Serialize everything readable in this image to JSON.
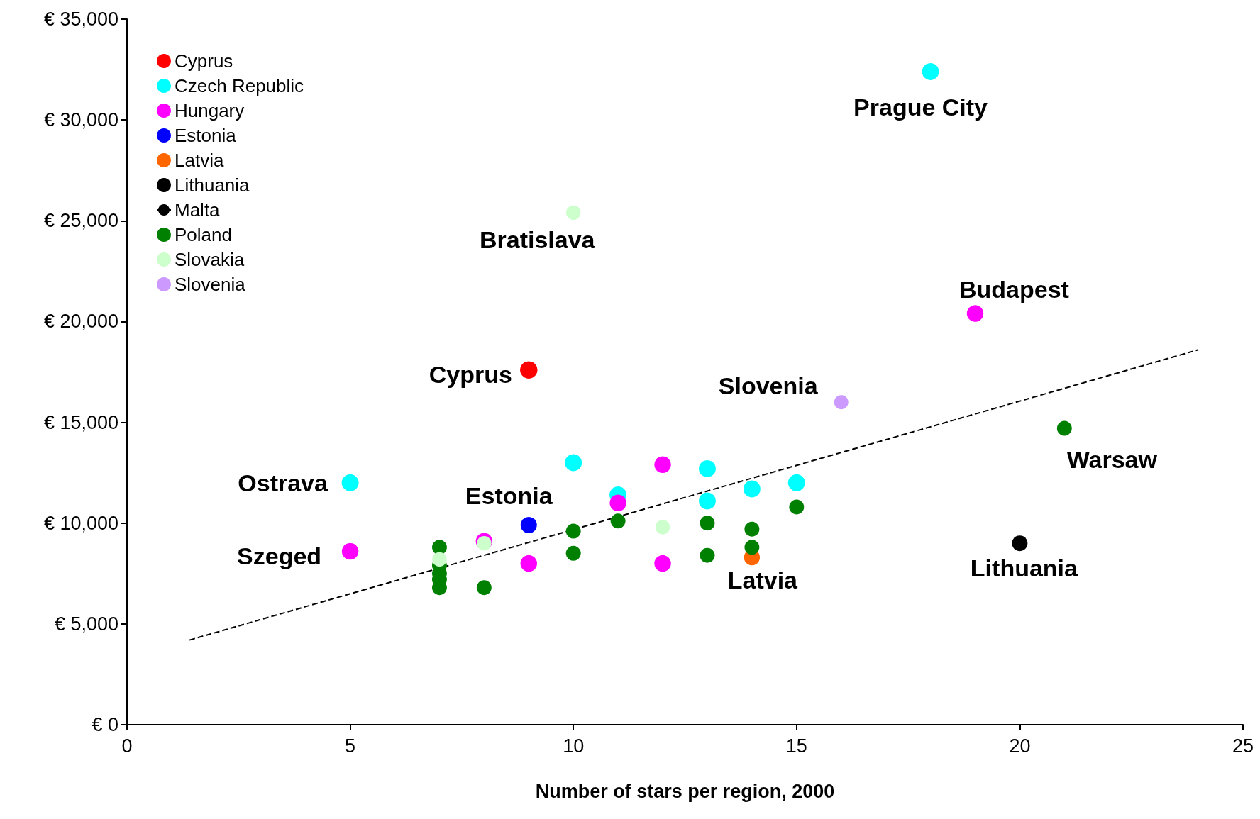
{
  "chart_data": {
    "type": "scatter",
    "xlabel": "Number of stars per region, 2000",
    "xlim": [
      0,
      25
    ],
    "xticks": [
      0,
      5,
      10,
      15,
      20,
      25
    ],
    "ylim": [
      0,
      35000
    ],
    "yticks": [
      {
        "value": 0,
        "label": "€ 0"
      },
      {
        "value": 5000,
        "label": "€ 5,000"
      },
      {
        "value": 10000,
        "label": "€ 10,000"
      },
      {
        "value": 15000,
        "label": "€ 15,000"
      },
      {
        "value": 20000,
        "label": "€ 20,000"
      },
      {
        "value": 25000,
        "label": "€ 25,000"
      },
      {
        "value": 30000,
        "label": "€ 30,000"
      },
      {
        "value": 35000,
        "label": "€ 35,000"
      }
    ],
    "grid": false,
    "legend": "top left",
    "marker": "circle",
    "series": [
      {
        "name": "Cyprus",
        "color": "#ff0000",
        "x": [
          9
        ],
        "values": [
          17600
        ]
      },
      {
        "name": "Czech Republic",
        "color": "#00ffff",
        "x": [
          18,
          5,
          10,
          11,
          13,
          13,
          14,
          15
        ],
        "values": [
          32400,
          12000,
          13000,
          11400,
          12700,
          11100,
          11700,
          12000
        ]
      },
      {
        "name": "Hungary",
        "color": "#ff00ff",
        "x": [
          19,
          5,
          8,
          9,
          11,
          12,
          12
        ],
        "values": [
          20400,
          8600,
          9100,
          8000,
          11000,
          12900,
          8000
        ]
      },
      {
        "name": "Estonia",
        "color": "#0000ff",
        "x": [
          9
        ],
        "values": [
          9900
        ]
      },
      {
        "name": "Latvia",
        "color": "#ff6600",
        "x": [
          14
        ],
        "values": [
          8300
        ]
      },
      {
        "name": "Lithuania",
        "color": "#000000",
        "x": [
          20
        ],
        "values": [
          9000
        ]
      },
      {
        "name": "Malta",
        "type": "line",
        "color": "#000000",
        "line_style": "dashed",
        "marker": "none",
        "x": [
          1.4,
          24
        ],
        "values": [
          4200,
          18600
        ]
      },
      {
        "name": "Poland",
        "color": "#008000",
        "x": [
          21,
          7,
          7,
          7,
          7,
          7,
          8,
          10,
          10,
          11,
          13,
          13,
          14,
          14,
          15
        ],
        "values": [
          14700,
          6800,
          7200,
          7500,
          7900,
          8800,
          6800,
          9600,
          8500,
          10100,
          10000,
          8400,
          9700,
          8800,
          10800
        ]
      },
      {
        "name": "Slovakia",
        "color": "#ccffcc",
        "x": [
          10,
          8,
          12,
          7
        ],
        "values": [
          25400,
          9000,
          9800,
          8200
        ]
      },
      {
        "name": "Slovenia",
        "color": "#cc99ff",
        "x": [
          16
        ],
        "values": [
          16000
        ]
      }
    ],
    "annotations": [
      {
        "text": "Prague City",
        "x": 18,
        "y": 32400
      },
      {
        "text": "Bratislava",
        "x": 10,
        "y": 25400
      },
      {
        "text": "Budapest",
        "x": 19,
        "y": 20400
      },
      {
        "text": "Cyprus",
        "x": 9,
        "y": 17600
      },
      {
        "text": "Slovenia",
        "x": 16,
        "y": 16000
      },
      {
        "text": "Warsaw",
        "x": 21,
        "y": 14700
      },
      {
        "text": "Ostrava",
        "x": 5,
        "y": 12000
      },
      {
        "text": "Estonia",
        "x": 9,
        "y": 9900
      },
      {
        "text": "Szeged",
        "x": 5,
        "y": 8600
      },
      {
        "text": "Latvia",
        "x": 14,
        "y": 8300
      },
      {
        "text": "Lithuania",
        "x": 20,
        "y": 9000
      }
    ]
  }
}
